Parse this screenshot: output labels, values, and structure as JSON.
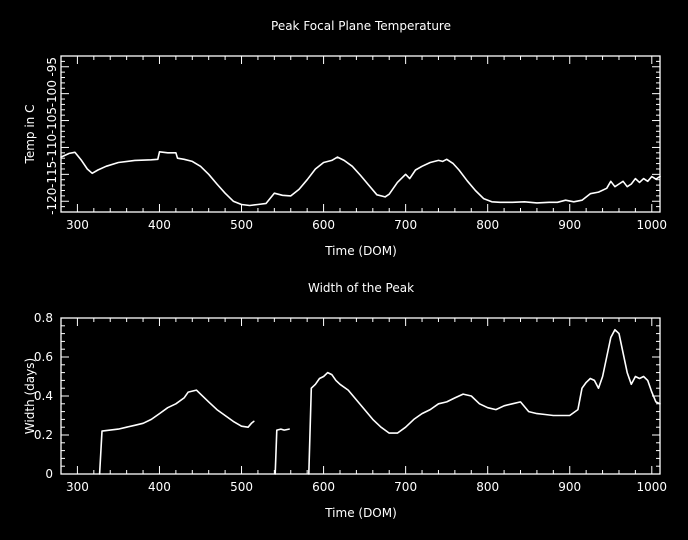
{
  "colors": {
    "background": "#000000",
    "foreground": "#ffffff"
  },
  "chart_data": [
    {
      "type": "line",
      "title": "Peak Focal Plane Temperature",
      "xlabel": "Time (DOM)",
      "ylabel": "Temp in C",
      "xlim": [
        280,
        1010
      ],
      "ylim": [
        -122,
        -93
      ],
      "xticks": [
        300,
        400,
        500,
        600,
        700,
        800,
        900,
        1000
      ],
      "yticks": [
        -120,
        -115,
        -110,
        -105,
        -100,
        -95
      ],
      "grid": false,
      "series": [
        {
          "segments": [
            [
              [
                280,
                -111.8
              ],
              [
                290,
                -111.1
              ],
              [
                297,
                -110.9
              ],
              [
                305,
                -112.4
              ],
              [
                312,
                -114.0
              ],
              [
                318,
                -114.8
              ],
              [
                325,
                -114.2
              ],
              [
                335,
                -113.5
              ],
              [
                350,
                -112.8
              ],
              [
                370,
                -112.4
              ],
              [
                390,
                -112.3
              ],
              [
                398,
                -112.2
              ],
              [
                400,
                -110.8
              ],
              [
                410,
                -111.0
              ],
              [
                420,
                -111.0
              ],
              [
                422,
                -112.0
              ],
              [
                430,
                -112.2
              ],
              [
                440,
                -112.6
              ],
              [
                450,
                -113.5
              ],
              [
                460,
                -115.0
              ],
              [
                470,
                -116.8
              ],
              [
                480,
                -118.5
              ],
              [
                490,
                -120.0
              ],
              [
                500,
                -120.6
              ],
              [
                510,
                -120.8
              ],
              [
                520,
                -120.6
              ],
              [
                530,
                -120.4
              ],
              [
                540,
                -118.5
              ],
              [
                550,
                -118.9
              ],
              [
                560,
                -119.0
              ],
              [
                570,
                -117.8
              ],
              [
                580,
                -116.0
              ],
              [
                590,
                -114.0
              ],
              [
                600,
                -112.8
              ],
              [
                610,
                -112.4
              ],
              [
                617,
                -111.8
              ],
              [
                625,
                -112.4
              ],
              [
                635,
                -113.5
              ],
              [
                645,
                -115.2
              ],
              [
                655,
                -117.0
              ],
              [
                665,
                -118.8
              ],
              [
                675,
                -119.2
              ],
              [
                680,
                -118.7
              ],
              [
                690,
                -116.5
              ],
              [
                700,
                -115.0
              ],
              [
                705,
                -115.8
              ],
              [
                712,
                -114.2
              ],
              [
                720,
                -113.5
              ],
              [
                730,
                -112.8
              ],
              [
                740,
                -112.4
              ],
              [
                745,
                -112.6
              ],
              [
                750,
                -112.2
              ],
              [
                758,
                -113.0
              ],
              [
                765,
                -114.2
              ],
              [
                775,
                -116.2
              ],
              [
                785,
                -118.0
              ],
              [
                795,
                -119.5
              ],
              [
                805,
                -120.1
              ],
              [
                815,
                -120.2
              ],
              [
                830,
                -120.2
              ],
              [
                845,
                -120.1
              ],
              [
                860,
                -120.3
              ],
              [
                875,
                -120.2
              ],
              [
                885,
                -120.2
              ],
              [
                895,
                -119.8
              ],
              [
                905,
                -120.1
              ],
              [
                915,
                -119.8
              ],
              [
                925,
                -118.6
              ],
              [
                935,
                -118.3
              ],
              [
                945,
                -117.6
              ],
              [
                950,
                -116.3
              ],
              [
                955,
                -117.3
              ],
              [
                960,
                -116.8
              ],
              [
                965,
                -116.3
              ],
              [
                970,
                -117.3
              ],
              [
                975,
                -116.8
              ],
              [
                980,
                -115.8
              ],
              [
                985,
                -116.5
              ],
              [
                990,
                -115.8
              ],
              [
                995,
                -116.3
              ],
              [
                1000,
                -115.4
              ],
              [
                1005,
                -115.9
              ],
              [
                1010,
                -115.4
              ]
            ]
          ]
        }
      ]
    },
    {
      "type": "line",
      "title": "Width of the Peak",
      "xlabel": "Time (DOM)",
      "ylabel": "Width (days)",
      "xlim": [
        280,
        1010
      ],
      "ylim": [
        0,
        0.8
      ],
      "xticks": [
        300,
        400,
        500,
        600,
        700,
        800,
        900,
        1000
      ],
      "yticks": [
        0,
        0.2,
        0.4,
        0.6,
        0.8
      ],
      "yticklabels": [
        "0",
        "0.2",
        "0.4",
        "0.6",
        "0.8"
      ],
      "grid": false,
      "series": [
        {
          "segments": [
            [
              [
                327,
                0.0
              ],
              [
                330,
                0.22
              ],
              [
                340,
                0.225
              ],
              [
                350,
                0.23
              ],
              [
                360,
                0.24
              ],
              [
                370,
                0.25
              ],
              [
                380,
                0.26
              ],
              [
                390,
                0.28
              ],
              [
                400,
                0.31
              ],
              [
                410,
                0.34
              ],
              [
                420,
                0.36
              ],
              [
                430,
                0.39
              ],
              [
                435,
                0.42
              ],
              [
                440,
                0.425
              ],
              [
                445,
                0.43
              ],
              [
                450,
                0.41
              ],
              [
                460,
                0.37
              ],
              [
                470,
                0.33
              ],
              [
                480,
                0.3
              ],
              [
                490,
                0.27
              ],
              [
                500,
                0.245
              ],
              [
                508,
                0.24
              ],
              [
                512,
                0.26
              ],
              [
                515,
                0.27
              ]
            ],
            [
              [
                541,
                0.0
              ],
              [
                543,
                0.225
              ],
              [
                548,
                0.23
              ],
              [
                552,
                0.225
              ],
              [
                558,
                0.23
              ]
            ],
            [
              [
                582,
                0.0
              ],
              [
                585,
                0.44
              ],
              [
                590,
                0.46
              ],
              [
                595,
                0.49
              ],
              [
                600,
                0.5
              ],
              [
                605,
                0.52
              ],
              [
                610,
                0.51
              ],
              [
                615,
                0.48
              ],
              [
                620,
                0.46
              ],
              [
                630,
                0.43
              ],
              [
                640,
                0.38
              ],
              [
                650,
                0.33
              ],
              [
                660,
                0.28
              ],
              [
                670,
                0.24
              ],
              [
                680,
                0.21
              ],
              [
                690,
                0.21
              ],
              [
                700,
                0.24
              ],
              [
                710,
                0.28
              ],
              [
                720,
                0.31
              ],
              [
                730,
                0.33
              ],
              [
                740,
                0.36
              ],
              [
                750,
                0.37
              ],
              [
                760,
                0.39
              ],
              [
                770,
                0.41
              ],
              [
                780,
                0.4
              ],
              [
                790,
                0.36
              ],
              [
                800,
                0.34
              ],
              [
                810,
                0.33
              ],
              [
                820,
                0.35
              ],
              [
                830,
                0.36
              ],
              [
                840,
                0.37
              ],
              [
                850,
                0.32
              ],
              [
                860,
                0.31
              ],
              [
                870,
                0.305
              ],
              [
                880,
                0.3
              ],
              [
                890,
                0.3
              ],
              [
                900,
                0.3
              ],
              [
                910,
                0.33
              ],
              [
                915,
                0.44
              ],
              [
                920,
                0.47
              ],
              [
                925,
                0.49
              ],
              [
                930,
                0.48
              ],
              [
                935,
                0.44
              ],
              [
                940,
                0.5
              ],
              [
                945,
                0.6
              ],
              [
                950,
                0.7
              ],
              [
                955,
                0.74
              ],
              [
                960,
                0.72
              ],
              [
                965,
                0.62
              ],
              [
                970,
                0.52
              ],
              [
                975,
                0.46
              ],
              [
                980,
                0.5
              ],
              [
                985,
                0.49
              ],
              [
                990,
                0.5
              ],
              [
                995,
                0.48
              ],
              [
                1000,
                0.42
              ],
              [
                1005,
                0.37
              ],
              [
                1010,
                0.36
              ]
            ]
          ]
        }
      ]
    }
  ]
}
